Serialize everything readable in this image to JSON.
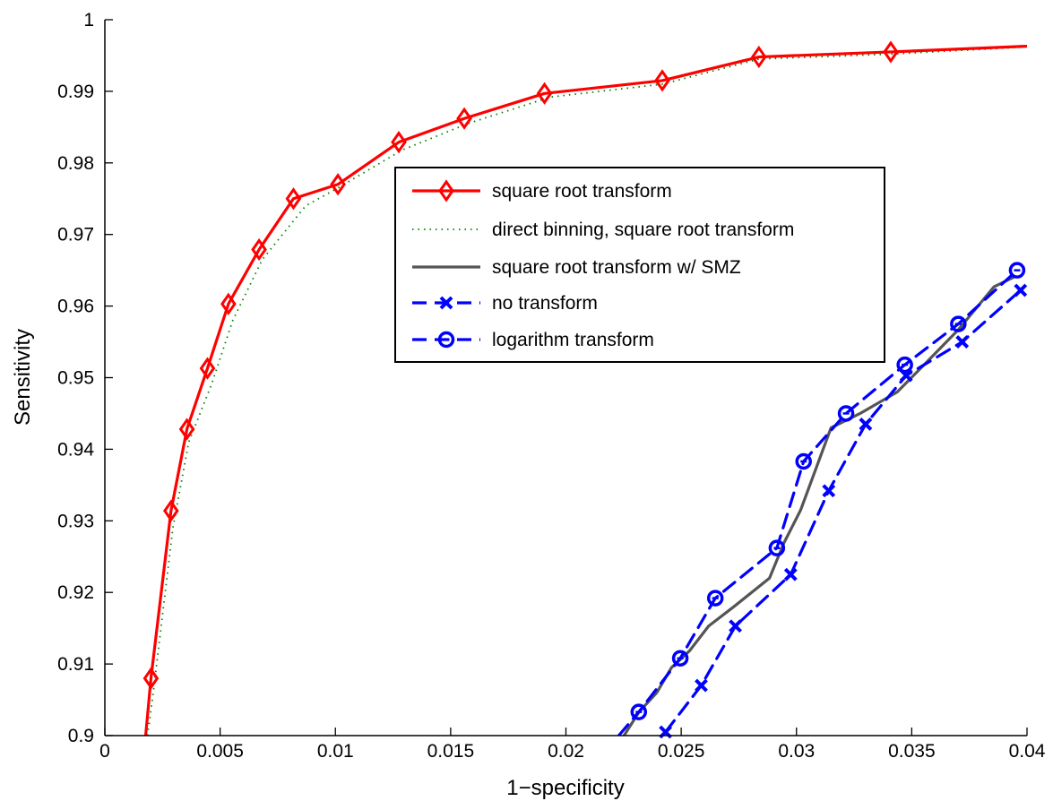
{
  "chart_data": {
    "type": "line",
    "title": "",
    "xlabel": "1−specificity",
    "ylabel": "Sensitivity",
    "xlim": [
      0,
      0.04
    ],
    "ylim": [
      0.9,
      1.0
    ],
    "grid": false,
    "legend_position": "center",
    "x_ticks": [
      {
        "value": 0,
        "label": "0"
      },
      {
        "value": 0.005,
        "label": "0.005"
      },
      {
        "value": 0.01,
        "label": "0.01"
      },
      {
        "value": 0.015,
        "label": "0.015"
      },
      {
        "value": 0.02,
        "label": "0.02"
      },
      {
        "value": 0.025,
        "label": "0.025"
      },
      {
        "value": 0.03,
        "label": "0.03"
      },
      {
        "value": 0.035,
        "label": "0.035"
      },
      {
        "value": 0.04,
        "label": "0.04"
      }
    ],
    "y_ticks": [
      {
        "value": 0.9,
        "label": "0.9"
      },
      {
        "value": 0.91,
        "label": "0.91"
      },
      {
        "value": 0.92,
        "label": "0.92"
      },
      {
        "value": 0.93,
        "label": "0.93"
      },
      {
        "value": 0.94,
        "label": "0.94"
      },
      {
        "value": 0.95,
        "label": "0.95"
      },
      {
        "value": 0.96,
        "label": "0.96"
      },
      {
        "value": 0.97,
        "label": "0.97"
      },
      {
        "value": 0.98,
        "label": "0.98"
      },
      {
        "value": 0.99,
        "label": "0.99"
      },
      {
        "value": 1.0,
        "label": "1"
      }
    ],
    "series": [
      {
        "name": "square root transform",
        "color": "#ff0000",
        "line_style": "solid",
        "marker": "diamond",
        "x": [
          0.00177,
          0.002,
          0.00287,
          0.00356,
          0.00445,
          0.00536,
          0.00669,
          0.00818,
          0.01011,
          0.01275,
          0.01559,
          0.01907,
          0.02418,
          0.02837,
          0.03409,
          0.04
        ],
        "y": [
          0.9,
          0.908,
          0.9314,
          0.9428,
          0.9513,
          0.9603,
          0.9679,
          0.975,
          0.977,
          0.9829,
          0.9862,
          0.9897,
          0.9915,
          0.9948,
          0.9955,
          0.9963
        ],
        "marker_x": [
          0.002,
          0.00287,
          0.00356,
          0.00445,
          0.00536,
          0.00669,
          0.00818,
          0.01011,
          0.01275,
          0.01559,
          0.01907,
          0.02418,
          0.02837,
          0.03409
        ],
        "marker_y": [
          0.908,
          0.9314,
          0.9428,
          0.9513,
          0.9603,
          0.9679,
          0.975,
          0.977,
          0.9829,
          0.9862,
          0.9897,
          0.9915,
          0.9948,
          0.9955
        ]
      },
      {
        "name": "direct binning, square root transform",
        "color": "#008000",
        "line_style": "dotted",
        "marker": "none",
        "x": [
          0.00185,
          0.0021,
          0.00295,
          0.00364,
          0.00462,
          0.00555,
          0.00683,
          0.00871,
          0.01011,
          0.0129,
          0.01575,
          0.01933,
          0.02418,
          0.02837,
          0.03409,
          0.04
        ],
        "y": [
          0.9,
          0.906,
          0.929,
          0.941,
          0.949,
          0.958,
          0.9665,
          0.974,
          0.9765,
          0.9818,
          0.9855,
          0.9892,
          0.991,
          0.9945,
          0.9952,
          0.9962
        ]
      },
      {
        "name": "square root transform w/ SMZ",
        "color": "#555555",
        "line_style": "solid",
        "marker": "none",
        "x": [
          0.02252,
          0.02317,
          0.02394,
          0.02458,
          0.02535,
          0.02619,
          0.02728,
          0.02883,
          0.02947,
          0.03018,
          0.0315,
          0.03276,
          0.03437,
          0.03566,
          0.03702,
          0.03857,
          0.0394
        ],
        "y": [
          0.9,
          0.9033,
          0.906,
          0.9095,
          0.9118,
          0.9153,
          0.918,
          0.922,
          0.927,
          0.9315,
          0.943,
          0.945,
          0.948,
          0.9522,
          0.9567,
          0.9627,
          0.964
        ]
      },
      {
        "name": "no transform",
        "color": "#0000ff",
        "line_style": "dashed",
        "marker": "x",
        "x": [
          0.02432,
          0.02587,
          0.02735,
          0.02975,
          0.0314,
          0.033,
          0.03476,
          0.03719,
          0.03972
        ],
        "y": [
          0.9005,
          0.907,
          0.9153,
          0.9225,
          0.9342,
          0.9435,
          0.9503,
          0.955,
          0.9622
        ],
        "marker_x": [
          0.02432,
          0.02587,
          0.02735,
          0.02975,
          0.0314,
          0.033,
          0.03476,
          0.03719,
          0.03972
        ],
        "marker_y": [
          0.9005,
          0.907,
          0.9153,
          0.9225,
          0.9342,
          0.9435,
          0.9503,
          0.955,
          0.9622
        ]
      },
      {
        "name": "logarithm transform",
        "color": "#0000ff",
        "line_style": "dashed",
        "marker": "o",
        "x": [
          0.02229,
          0.02316,
          0.02496,
          0.02648,
          0.02915,
          0.03031,
          0.03215,
          0.0347,
          0.03702,
          0.03957
        ],
        "y": [
          0.9,
          0.9033,
          0.9108,
          0.9192,
          0.9262,
          0.9383,
          0.945,
          0.9518,
          0.9575,
          0.965
        ],
        "marker_x": [
          0.02316,
          0.02496,
          0.02648,
          0.02915,
          0.03031,
          0.03215,
          0.0347,
          0.03702,
          0.03957
        ],
        "marker_y": [
          0.9033,
          0.9108,
          0.9192,
          0.9262,
          0.9383,
          0.945,
          0.9518,
          0.9575,
          0.965
        ]
      }
    ]
  }
}
